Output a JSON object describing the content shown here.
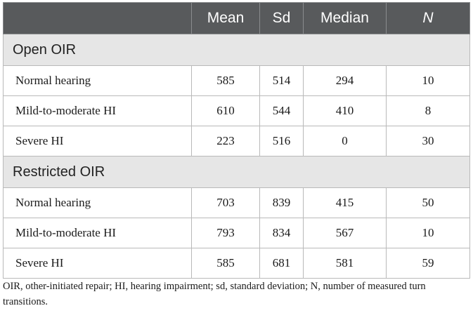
{
  "table": {
    "headers": [
      "",
      "Mean",
      "Sd",
      "Median",
      "N"
    ],
    "sections": [
      {
        "title": "Open OIR",
        "rows": [
          {
            "label": "Normal hearing",
            "mean": "585",
            "sd": "514",
            "median": "294",
            "n": "10"
          },
          {
            "label": "Mild-to-moderate HI",
            "mean": "610",
            "sd": "544",
            "median": "410",
            "n": "8"
          },
          {
            "label": "Severe HI",
            "mean": "223",
            "sd": "516",
            "median": "0",
            "n": "30"
          }
        ]
      },
      {
        "title": "Restricted OIR",
        "rows": [
          {
            "label": "Normal hearing",
            "mean": "703",
            "sd": "839",
            "median": "415",
            "n": "50"
          },
          {
            "label": "Mild-to-moderate HI",
            "mean": "793",
            "sd": "834",
            "median": "567",
            "n": "10"
          },
          {
            "label": "Severe HI",
            "mean": "585",
            "sd": "681",
            "median": "581",
            "n": "59"
          }
        ]
      }
    ]
  },
  "footnote": "OIR, other-initiated repair; HI, hearing impairment; sd, standard deviation; N, number of measured turn transitions."
}
